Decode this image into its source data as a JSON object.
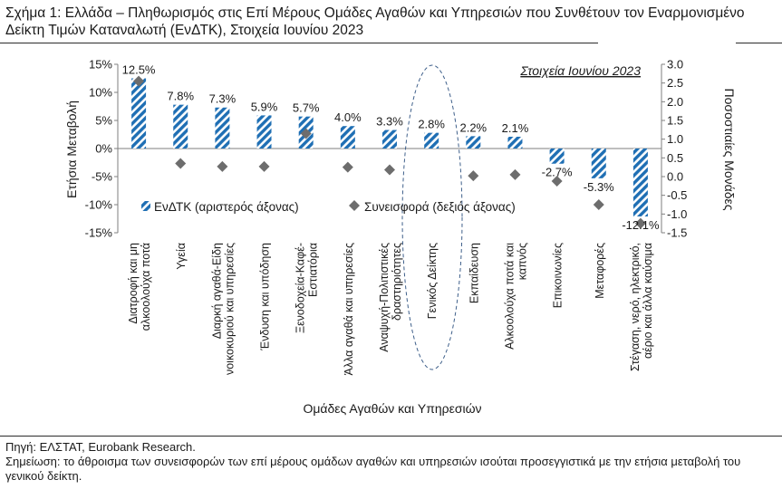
{
  "title": "Σχήμα 1: Ελλάδα – Πληθωρισμός στις Επί Μέρους Ομάδες Αγαθών και Υπηρεσιών που Συνθέτουν τον Εναρμονισμένο Δείκτη Τιμών Καταναλωτή (ΕνΔΤΚ), Στοιχεία Ιουνίου 2023",
  "source": "Πηγή: ΕΛΣΤΑΤ, Eurobank Research.",
  "note": "Σημείωση: το άθροισμα των συνεισφορών των επί μέρους ομάδων αγαθών και υπηρεσιών ισούται προσεγγιστικά με την ετήσια μεταβολή του γενικού δείκτη.",
  "chart_data": {
    "type": "bar",
    "annotation": "Στοιχεία Ιουνίου 2023",
    "xlabel": "Ομάδες Αγαθών και Υπηρεσιών",
    "ylabel": "Ετήσια Μεταβολή",
    "y2label": "Ποσοστιαίες Μονάδες",
    "ylim": [
      -15,
      15
    ],
    "y2lim": [
      -1.5,
      3.0
    ],
    "yticks": [
      "15%",
      "10%",
      "5%",
      "0%",
      "-5%",
      "-10%",
      "-15%"
    ],
    "y2ticks": [
      "3.0",
      "2.5",
      "2.0",
      "1.5",
      "1.0",
      "0.5",
      "0.0",
      "-0.5",
      "-1.0",
      "-1.5"
    ],
    "categories": [
      [
        "Διατροφή και μη",
        "αλκοολούχα ποτά"
      ],
      [
        "Υγεία"
      ],
      [
        "Διαρκή αγαθά-Είδη",
        "νοικοκυριού και υπηρεσίες"
      ],
      [
        "Ένδυση και υπόδηση"
      ],
      [
        "Ξενοδοχεία-Καφέ-",
        "Εστιατόρια"
      ],
      [
        "Άλλα αγαθά και υπηρεσίες"
      ],
      [
        "Αναψυχή-Πολιτιστικές",
        "δραστηριότητες"
      ],
      [
        "Γενικός Δείκτης"
      ],
      [
        "Εκπαίδευση"
      ],
      [
        "Αλκοολούχα ποτά και",
        "καπνός"
      ],
      [
        "Επικοινωνίες"
      ],
      [
        "Μεταφορές"
      ],
      [
        "Στέγαση, νερό, ηλεκτρικό,",
        "αέριο και άλλα καύσιμα"
      ]
    ],
    "series": [
      {
        "name": "ΕνΔΤΚ (αριστερός άξονας)",
        "axis": "left",
        "color": "#1f6fb4",
        "values": [
          12.5,
          7.8,
          7.3,
          5.9,
          5.7,
          4.0,
          3.3,
          2.8,
          2.2,
          2.1,
          -2.7,
          -5.3,
          -12.1
        ],
        "labels": [
          "12.5%",
          "7.8%",
          "7.3%",
          "5.9%",
          "5.7%",
          "4.0%",
          "3.3%",
          "2.8%",
          "2.2%",
          "2.1%",
          "-2.7%",
          "-5.3%",
          "-12.1%"
        ]
      },
      {
        "name": "Συνεισφορά (δεξιός άξονας)",
        "axis": "right",
        "color": "#6d6d6d",
        "values": [
          2.55,
          0.35,
          0.27,
          0.27,
          1.15,
          0.25,
          0.18,
          null,
          0.02,
          0.05,
          -0.12,
          -0.75,
          -1.25
        ]
      }
    ],
    "legend": "middle-left",
    "highlight": "Γενικός Δείκτης"
  }
}
